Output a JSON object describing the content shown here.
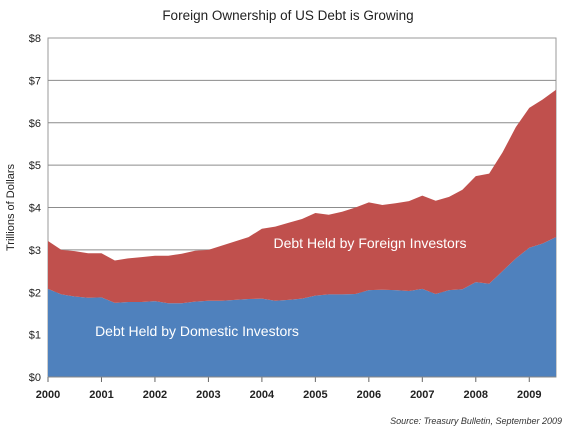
{
  "chart_data": {
    "type": "area",
    "stacked": true,
    "title": "Foreign Ownership of US Debt is Growing",
    "ylabel": "Trillions of Dollars",
    "xlabel": "",
    "source": "Source: Treasury Bulletin, September 2009",
    "ylim": [
      0,
      8
    ],
    "xlim": [
      2000.0,
      2009.5
    ],
    "yticks": [
      "$0",
      "$1",
      "$2",
      "$3",
      "$4",
      "$5",
      "$6",
      "$7",
      "$8"
    ],
    "xticks": [
      "2000",
      "2001",
      "2002",
      "2003",
      "2004",
      "2005",
      "2006",
      "2007",
      "2008",
      "2009"
    ],
    "grid": "horizontal",
    "x": [
      2000.0,
      2000.25,
      2000.5,
      2000.75,
      2001.0,
      2001.25,
      2001.5,
      2001.75,
      2002.0,
      2002.25,
      2002.5,
      2002.75,
      2003.0,
      2003.25,
      2003.5,
      2003.75,
      2004.0,
      2004.25,
      2004.5,
      2004.75,
      2005.0,
      2005.25,
      2005.5,
      2005.75,
      2006.0,
      2006.25,
      2006.5,
      2006.75,
      2007.0,
      2007.25,
      2007.5,
      2007.75,
      2008.0,
      2008.25,
      2008.5,
      2008.75,
      2009.0,
      2009.25,
      2009.5
    ],
    "series": [
      {
        "name": "Debt Held by Domestic Investors",
        "color": "#4f81bd",
        "values": [
          2.08,
          1.95,
          1.9,
          1.87,
          1.88,
          1.75,
          1.77,
          1.77,
          1.79,
          1.74,
          1.74,
          1.78,
          1.8,
          1.8,
          1.82,
          1.84,
          1.85,
          1.8,
          1.82,
          1.85,
          1.92,
          1.95,
          1.95,
          1.96,
          2.05,
          2.06,
          2.05,
          2.03,
          2.08,
          1.96,
          2.05,
          2.07,
          2.24,
          2.2,
          2.5,
          2.8,
          3.05,
          3.15,
          3.3
        ]
      },
      {
        "name": "Debt Held by Foreign Investors",
        "color": "#c0504d",
        "values": [
          1.13,
          1.05,
          1.07,
          1.05,
          1.04,
          1.0,
          1.03,
          1.06,
          1.07,
          1.12,
          1.17,
          1.2,
          1.2,
          1.3,
          1.38,
          1.46,
          1.65,
          1.75,
          1.82,
          1.88,
          1.95,
          1.88,
          1.95,
          2.04,
          2.07,
          2.0,
          2.05,
          2.12,
          2.2,
          2.2,
          2.2,
          2.35,
          2.5,
          2.6,
          2.8,
          3.1,
          3.3,
          3.4,
          3.48
        ]
      }
    ]
  }
}
